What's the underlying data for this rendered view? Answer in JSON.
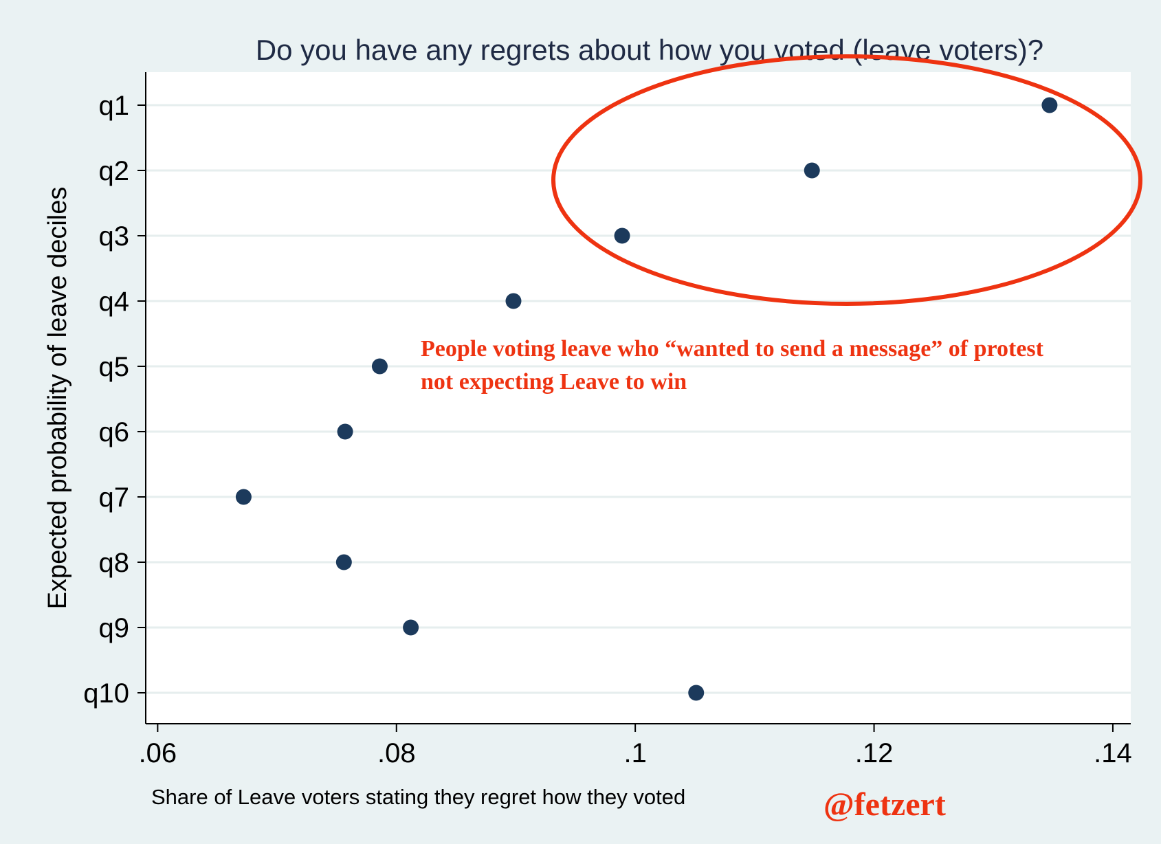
{
  "chart_data": {
    "type": "scatter",
    "title": "Do you have any regrets about how you voted (leave voters)?",
    "xlabel": "Share of Leave voters stating they regret how they voted",
    "ylabel": "Expected probability of leave deciles",
    "xlim": [
      0.059,
      0.1415
    ],
    "xticks": [
      {
        "value": 0.06,
        "label": ".06"
      },
      {
        "value": 0.08,
        "label": ".08"
      },
      {
        "value": 0.1,
        "label": ".1"
      },
      {
        "value": 0.12,
        "label": ".12"
      },
      {
        "value": 0.14,
        "label": ".14"
      }
    ],
    "categories": [
      "q1",
      "q2",
      "q3",
      "q4",
      "q5",
      "q6",
      "q7",
      "q8",
      "q9",
      "q10"
    ],
    "values": [
      0.1347,
      0.1148,
      0.0989,
      0.0898,
      0.0786,
      0.0757,
      0.0672,
      0.0756,
      0.0812,
      0.1051
    ],
    "grid": true,
    "legend": "none",
    "annotation": {
      "lines": [
        "People voting leave who “wanted to send a message” of protest",
        "not expecting Leave to win"
      ],
      "highlight": "ellipse around q1–q3",
      "color": "#ee3311"
    },
    "credit": "@fetzert",
    "colors": {
      "background": "#eaf2f3",
      "plot_background": "#ffffff",
      "marker": "#1c3a5c",
      "gridline": "#e6eeee",
      "annotation": "#ee3311"
    }
  }
}
